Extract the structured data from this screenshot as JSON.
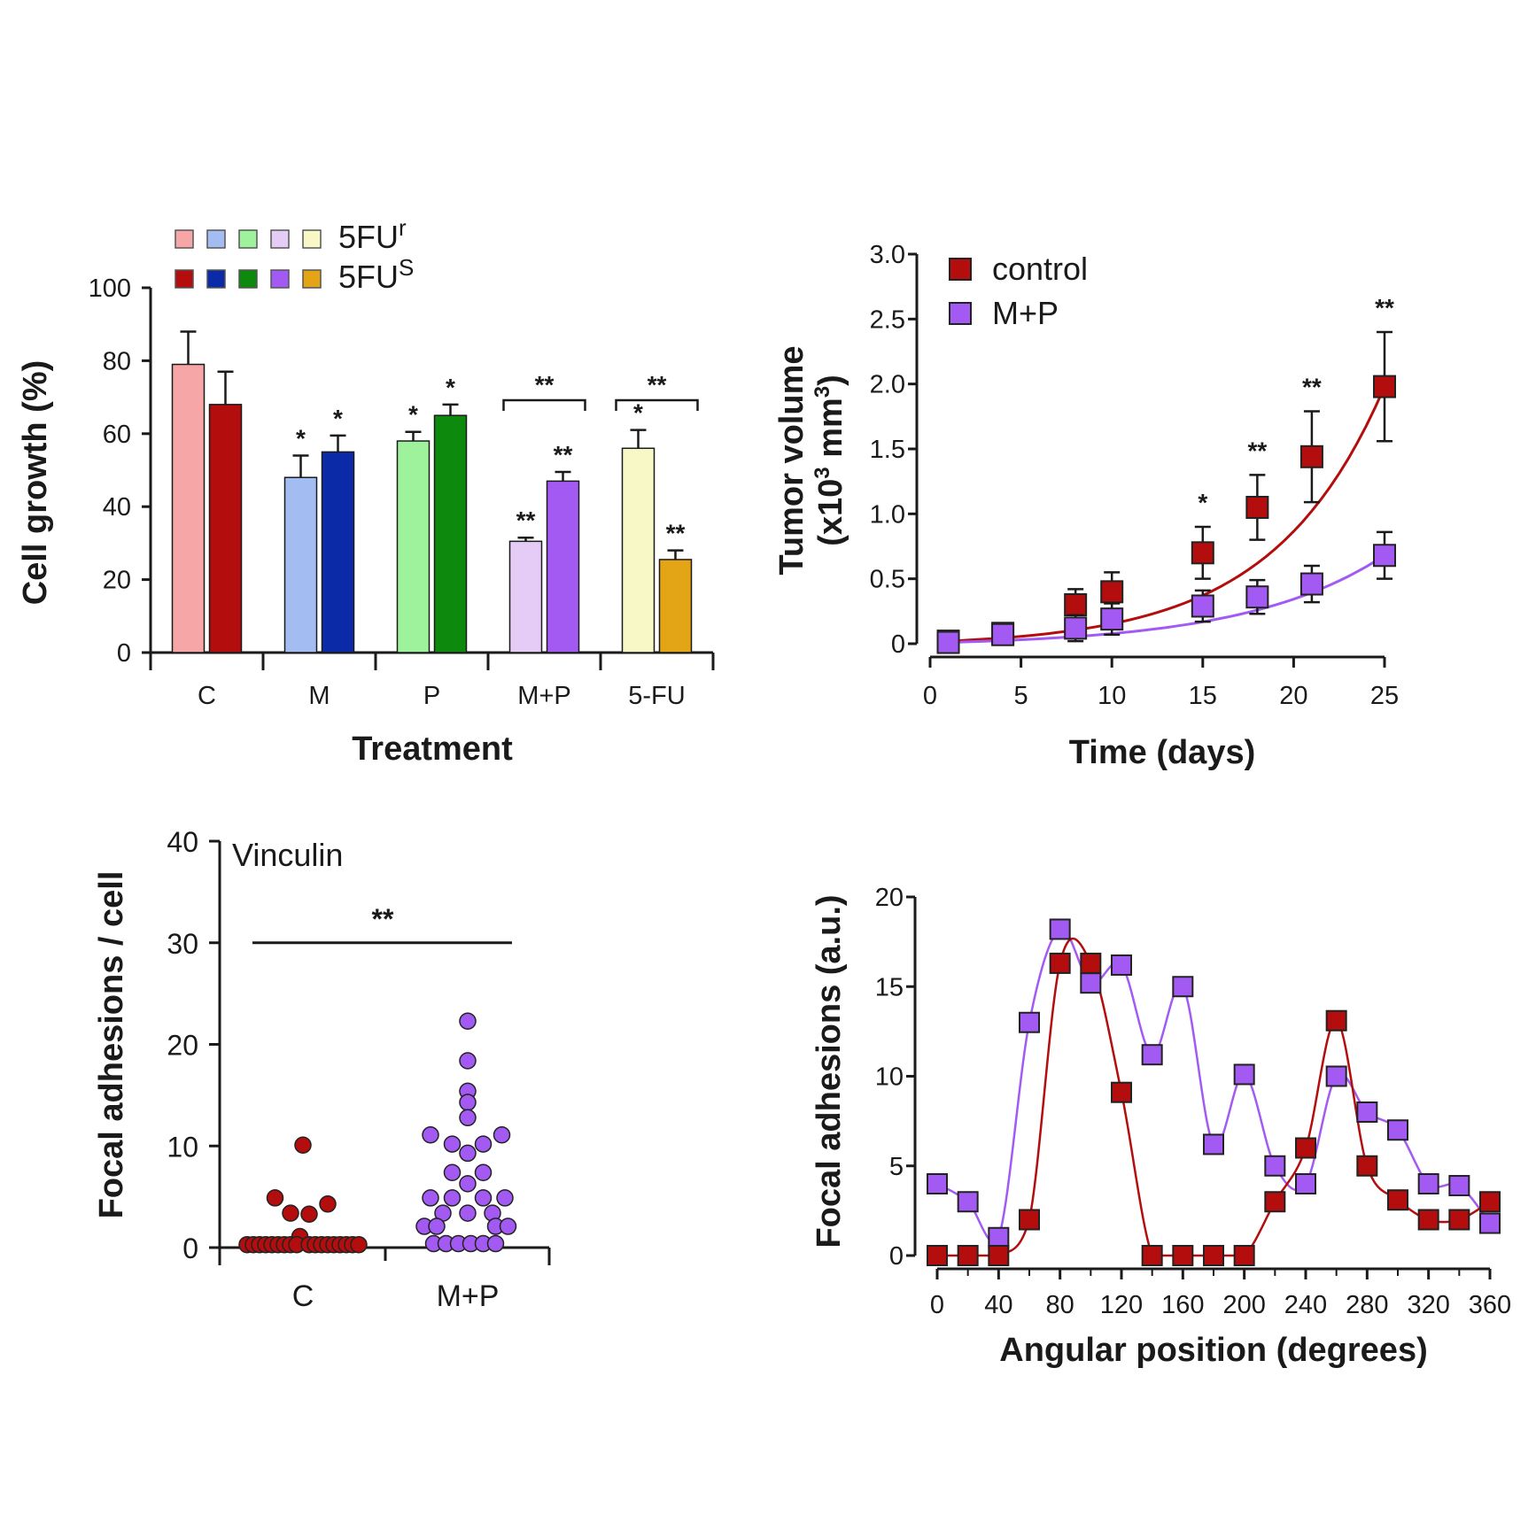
{
  "chart_data": [
    {
      "type": "bar",
      "xlabel": "Treatment",
      "ylabel": "Cell growth (%)",
      "ylim": [
        0,
        100
      ],
      "yticks": [
        "0",
        "20",
        "40",
        "60",
        "80",
        "100"
      ],
      "categories": [
        "C",
        "M",
        "P",
        "M+P",
        "5-FU"
      ],
      "legend": {
        "placement": "top-left",
        "rows": [
          {
            "label": "5FU",
            "sup": "r"
          },
          {
            "label": "5FU",
            "sup": "S"
          }
        ]
      },
      "series": [
        {
          "group": "5FUr",
          "values": [
            79,
            48,
            58,
            30.5,
            56
          ],
          "errors": [
            9,
            6,
            2.5,
            1,
            5
          ],
          "colors": [
            "#f6a6a6",
            "#a3bdf3",
            "#9ef29b",
            "#e5ccf6",
            "#f7f8c6"
          ],
          "stars": [
            "",
            "*",
            "*",
            "**",
            "*"
          ]
        },
        {
          "group": "5FUs",
          "values": [
            68,
            55,
            65,
            47,
            25.5
          ],
          "errors": [
            9,
            4.5,
            3,
            2.5,
            2.5
          ],
          "colors": [
            "#b30d0d",
            "#0b2aa8",
            "#0d8a0d",
            "#a35af2",
            "#e3a516"
          ],
          "stars": [
            "",
            "*",
            "*",
            "**",
            "**"
          ]
        }
      ],
      "brackets": [
        {
          "category": "M+P",
          "label": "**"
        },
        {
          "category": "5-FU",
          "label": "**"
        }
      ]
    },
    {
      "type": "line",
      "xlabel": "Time (days)",
      "ylabel": "Tumor volume",
      "ylabel_line2": "(x10",
      "ylabel_sup1": "3",
      "ylabel_mid": " mm",
      "ylabel_sup2": "3",
      "ylabel_end": ")",
      "xlim": [
        0,
        25
      ],
      "ylim": [
        0,
        3.0
      ],
      "xticks": [
        "0",
        "5",
        "10",
        "15",
        "20",
        "25"
      ],
      "yticks": [
        "0",
        "0.5",
        "1.0",
        "1.5",
        "2.0",
        "2.5",
        "3.0"
      ],
      "legend_placement": "top-left",
      "series": [
        {
          "name": "control",
          "color": "#b30d0d",
          "x": [
            1,
            4,
            8,
            10,
            15,
            18,
            21,
            25
          ],
          "y": [
            0.02,
            0.08,
            0.3,
            0.4,
            0.7,
            1.05,
            1.44,
            1.98
          ],
          "err": [
            0.02,
            0.05,
            0.12,
            0.15,
            0.2,
            0.25,
            0.35,
            0.42
          ]
        },
        {
          "name": "M+P",
          "color": "#a35af2",
          "x": [
            1,
            4,
            8,
            10,
            15,
            18,
            21,
            25
          ],
          "y": [
            0.01,
            0.07,
            0.12,
            0.19,
            0.29,
            0.36,
            0.46,
            0.68
          ],
          "err": [
            0.02,
            0.08,
            0.1,
            0.12,
            0.12,
            0.13,
            0.14,
            0.18
          ]
        }
      ],
      "stars": [
        {
          "x": 15,
          "label": "*"
        },
        {
          "x": 18,
          "label": "**"
        },
        {
          "x": 21,
          "label": "**"
        },
        {
          "x": 25,
          "label": "**"
        }
      ]
    },
    {
      "type": "scatter",
      "annotation": "Vinculin",
      "ylabel": "Focal adhesions / cell",
      "ylim": [
        0,
        40
      ],
      "yticks": [
        "0",
        "10",
        "20",
        "30",
        "40"
      ],
      "categories": [
        "C",
        "M+P"
      ],
      "bracket_label": "**",
      "groups": [
        {
          "name": "C",
          "color": "#b30d0d",
          "points": [
            [
              0,
              10
            ],
            [
              -0.45,
              4.8
            ],
            [
              -0.2,
              3.3
            ],
            [
              0.1,
              3.2
            ],
            [
              0.4,
              4.2
            ],
            [
              -0.05,
              1.0
            ],
            [
              -0.9,
              0.2
            ],
            [
              -0.8,
              0.2
            ],
            [
              -0.7,
              0.2
            ],
            [
              -0.6,
              0.2
            ],
            [
              -0.5,
              0.2
            ],
            [
              -0.4,
              0.2
            ],
            [
              -0.3,
              0.2
            ],
            [
              -0.2,
              0.2
            ],
            [
              -0.1,
              0.2
            ],
            [
              0.1,
              0.2
            ],
            [
              0.2,
              0.2
            ],
            [
              0.3,
              0.2
            ],
            [
              0.4,
              0.2
            ],
            [
              0.5,
              0.2
            ],
            [
              0.6,
              0.2
            ],
            [
              0.7,
              0.2
            ],
            [
              0.8,
              0.2
            ],
            [
              0.9,
              0.2
            ]
          ]
        },
        {
          "name": "M+P",
          "color": "#a35af2",
          "points": [
            [
              0,
              22.2
            ],
            [
              0,
              18.3
            ],
            [
              0,
              15.3
            ],
            [
              0,
              14.2
            ],
            [
              0,
              12.7
            ],
            [
              -0.6,
              11
            ],
            [
              0.55,
              11
            ],
            [
              -0.25,
              10.1
            ],
            [
              0.25,
              10.1
            ],
            [
              0,
              9.2
            ],
            [
              -0.25,
              7.3
            ],
            [
              0.25,
              7.3
            ],
            [
              0,
              6.2
            ],
            [
              -0.6,
              4.8
            ],
            [
              -0.25,
              4.8
            ],
            [
              0.25,
              4.8
            ],
            [
              0.6,
              4.8
            ],
            [
              -0.4,
              3.3
            ],
            [
              0,
              3.3
            ],
            [
              0.4,
              3.3
            ],
            [
              -0.7,
              2.0
            ],
            [
              -0.5,
              2.0
            ],
            [
              0.45,
              2.0
            ],
            [
              0.65,
              2.0
            ],
            [
              -0.55,
              0.3
            ],
            [
              -0.35,
              0.3
            ],
            [
              -0.15,
              0.3
            ],
            [
              0.05,
              0.3
            ],
            [
              0.25,
              0.3
            ],
            [
              0.45,
              0.3
            ]
          ]
        }
      ]
    },
    {
      "type": "line",
      "xlabel": "Angular position (degrees)",
      "ylabel": "Focal adhesions (a.u.)",
      "xlim": [
        0,
        360
      ],
      "ylim": [
        0,
        20
      ],
      "xticks": [
        "0",
        "40",
        "80",
        "120",
        "160",
        "200",
        "240",
        "280",
        "320",
        "360"
      ],
      "yticks": [
        "0",
        "5",
        "10",
        "15",
        "20"
      ],
      "series": [
        {
          "color": "#a35af2",
          "x": [
            0,
            20,
            40,
            60,
            80,
            100,
            120,
            140,
            160,
            180,
            200,
            220,
            240,
            260,
            280,
            300,
            320,
            340,
            360
          ],
          "y": [
            4,
            3,
            1,
            13,
            18.2,
            15.2,
            16.2,
            11.2,
            15.0,
            6.2,
            10.1,
            5.0,
            4.0,
            10.0,
            8.0,
            7.0,
            4.0,
            3.9,
            1.8
          ]
        },
        {
          "color": "#b30d0d",
          "x": [
            0,
            20,
            40,
            60,
            80,
            100,
            120,
            140,
            160,
            180,
            200,
            220,
            240,
            260,
            280,
            300,
            320,
            340,
            360
          ],
          "y": [
            0,
            0,
            0,
            2,
            16.3,
            16.3,
            9.1,
            0,
            0,
            0,
            0,
            3,
            6,
            13.1,
            5,
            3.1,
            2,
            2,
            3
          ]
        }
      ]
    }
  ]
}
